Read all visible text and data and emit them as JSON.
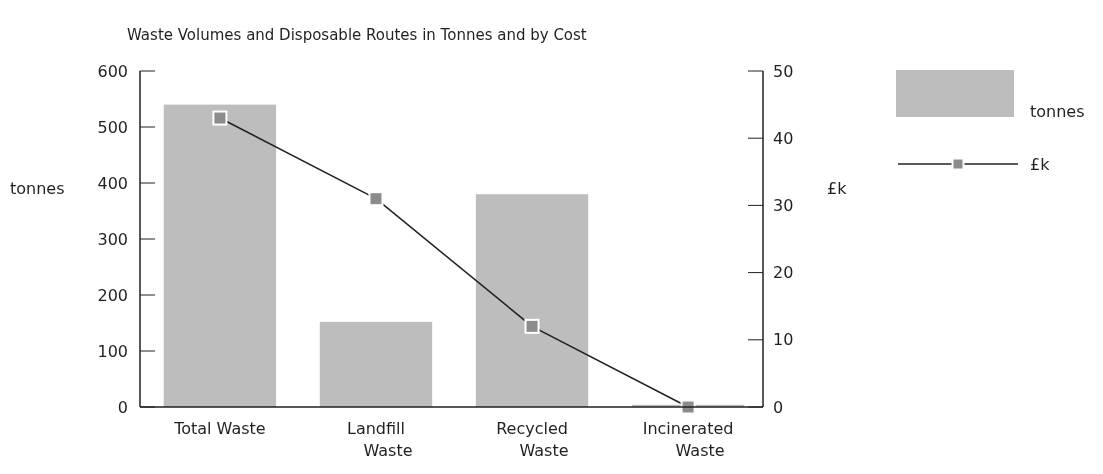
{
  "chart_data": {
    "type": "bar",
    "title": "Waste Volumes and Disposable Routes in Tonnes and by Cost",
    "categories": [
      "Total Waste",
      "Landfill Waste",
      "Recycled Waste",
      "Incinerated Waste"
    ],
    "series": [
      {
        "name": "tonnes",
        "color": "#bdbdbd",
        "values": [
          540,
          152,
          380,
          4
        ]
      },
      {
        "name": "£k",
        "type": "line",
        "axis": "y2",
        "color": "#231f20",
        "values": [
          43,
          31,
          12,
          0
        ]
      }
    ],
    "ylabel": "tonnes",
    "y2label": "£k",
    "ylim": [
      0,
      600
    ],
    "yticks": [
      0,
      100,
      200,
      300,
      400,
      500,
      600
    ],
    "y2lim": [
      0,
      50
    ],
    "y2ticks": [
      0,
      10,
      20,
      30,
      40,
      50
    ],
    "grid": false,
    "legend": "top right",
    "marker": "square",
    "line_style": "solid"
  }
}
